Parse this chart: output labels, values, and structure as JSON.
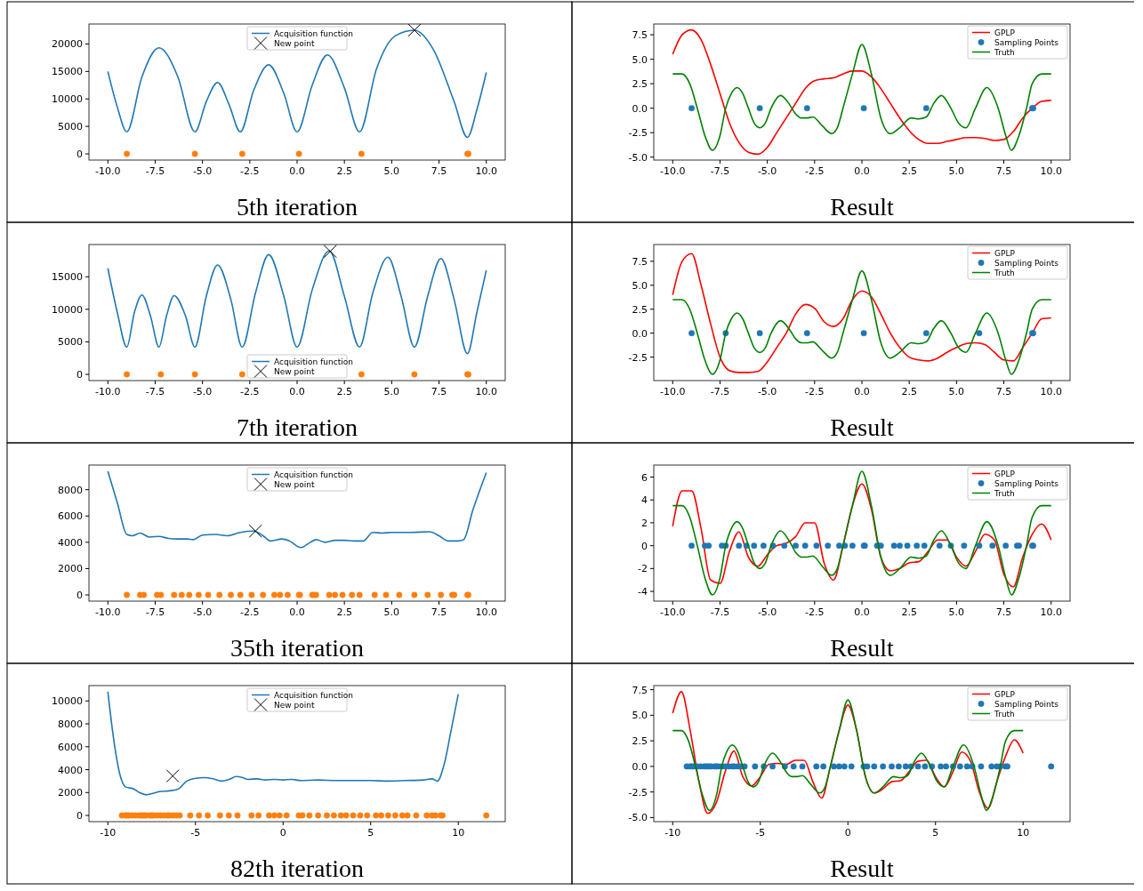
{
  "chart_data": [
    {
      "type": "line",
      "title": "5th iteration",
      "legend": "top",
      "xlim": [
        -11,
        11
      ],
      "ylim": [
        -1125,
        23625
      ],
      "xticks": [
        {
          "value": -10,
          "label": "-10.0"
        },
        {
          "value": -7.5,
          "label": "-7.5"
        },
        {
          "value": -5,
          "label": "-5.0"
        },
        {
          "value": -2.5,
          "label": "-2.5"
        },
        {
          "value": 0,
          "label": "0.0"
        },
        {
          "value": 2.5,
          "label": "2.5"
        },
        {
          "value": 5,
          "label": "5.0"
        },
        {
          "value": 7.5,
          "label": "7.5"
        },
        {
          "value": 10,
          "label": "10.0"
        }
      ],
      "yticks": [
        0,
        5000,
        10000,
        15000,
        20000
      ],
      "series": [
        {
          "name": "Acquisition function",
          "type": "line",
          "color": "#1f77b4",
          "x": [
            -10,
            -9.5,
            -9,
            -8.2,
            -7.3,
            -6.3,
            -5.4,
            -4.8,
            -4.2,
            -3.6,
            -3,
            -2.3,
            -1.5,
            -0.7,
            0,
            0.8,
            1.6,
            2.5,
            3.3,
            4.2,
            5.2,
            6.2,
            7.2,
            8.3,
            9,
            9.5,
            10
          ],
          "values": [
            15000,
            8500,
            4000,
            14000,
            19300,
            14000,
            4000,
            9500,
            13000,
            9000,
            4000,
            11500,
            16200,
            11000,
            4000,
            12500,
            18000,
            12000,
            4000,
            15500,
            21500,
            22500,
            19000,
            9500,
            3000,
            8000,
            14800
          ]
        },
        {
          "type": "scatter",
          "marker": "circle",
          "color": "#ff7f0e",
          "x": [
            -9,
            -5.4,
            -2.9,
            0.1,
            3.4,
            9,
            9.05
          ],
          "values": [
            0,
            0,
            0,
            0,
            0,
            0,
            0
          ]
        },
        {
          "name": "New point",
          "type": "scatter",
          "marker": "cross",
          "color": "#000000",
          "x": [
            6.2
          ],
          "values": [
            22500
          ]
        }
      ]
    },
    {
      "type": "line",
      "title": "Result",
      "legend": "top right",
      "x": [
        -10,
        -9.5,
        -9,
        -8.5,
        -8,
        -7.5,
        -7,
        -6.5,
        -6,
        -5.5,
        -5,
        -4.5,
        -4,
        -3.5,
        -3,
        -2.5,
        -2,
        -1.5,
        -1,
        -0.5,
        0,
        0.5,
        1,
        1.5,
        2,
        2.5,
        3,
        3.5,
        4,
        4.5,
        5,
        5.5,
        6,
        6.5,
        7,
        7.5,
        8,
        8.5,
        9,
        9.5,
        10
      ],
      "xlim": [
        -11,
        11
      ],
      "ylim": [
        -5.3,
        8.6
      ],
      "xticks": [
        {
          "value": -10,
          "label": "-10.0"
        },
        {
          "value": -7.5,
          "label": "-7.5"
        },
        {
          "value": -5,
          "label": "-5.0"
        },
        {
          "value": -2.5,
          "label": "-2.5"
        },
        {
          "value": 0,
          "label": "0.0"
        },
        {
          "value": 2.5,
          "label": "2.5"
        },
        {
          "value": 5,
          "label": "5.0"
        },
        {
          "value": 7.5,
          "label": "7.5"
        },
        {
          "value": 10,
          "label": "10.0"
        }
      ],
      "yticks": [
        {
          "value": -5,
          "label": "-5.0"
        },
        {
          "value": -2.5,
          "label": "-2.5"
        },
        {
          "value": 0,
          "label": "0.0"
        },
        {
          "value": 2.5,
          "label": "2.5"
        },
        {
          "value": 5,
          "label": "5.0"
        },
        {
          "value": 7.5,
          "label": "7.5"
        }
      ],
      "series": [
        {
          "name": "GPLP",
          "type": "line",
          "color": "#ff0000",
          "values": [
            5.5,
            7.5,
            8,
            7,
            4.5,
            1.5,
            -1.5,
            -3.5,
            -4.5,
            -4.7,
            -4,
            -2.5,
            -1,
            0.5,
            2,
            2.8,
            3,
            3.1,
            3.5,
            3.8,
            3.8,
            3.2,
            2,
            0.5,
            -1,
            -2.3,
            -3.2,
            -3.6,
            -3.6,
            -3.4,
            -3.2,
            -3,
            -3,
            -3.1,
            -3.3,
            -3.2,
            -2.4,
            -1,
            0,
            0.7,
            0.8
          ]
        },
        {
          "name": "Sampling Points",
          "type": "scatter",
          "marker": "circle",
          "color": "#1f77b4",
          "x": [
            -9,
            -5.4,
            -2.9,
            0.1,
            3.4,
            9,
            9.05
          ],
          "values": [
            0,
            0,
            0,
            0,
            0,
            0,
            0
          ]
        },
        {
          "name": "Truth",
          "type": "line",
          "color": "#008000",
          "x": [
            -10,
            -9.5,
            -9.1,
            -8.7,
            -8.3,
            -7.9,
            -7.5,
            -7.2,
            -6.9,
            -6.6,
            -6.3,
            -6,
            -5.7,
            -5.4,
            -5.1,
            -4.8,
            -4.3,
            -3.8,
            -3.5,
            -3.2,
            -2.9,
            -2.6,
            -2.1,
            -1.6,
            -1.3,
            -1,
            -0.5,
            0,
            0.5,
            1,
            1.5,
            2,
            2.6,
            3,
            3.4,
            3.8,
            4.2,
            4.7,
            5.1,
            5.5,
            6,
            6.6,
            7.2,
            7.6,
            7.9,
            8.3,
            8.7,
            9,
            9.5,
            10
          ],
          "values": [
            3.5,
            3.5,
            2.5,
            0,
            -2.8,
            -4.3,
            -2.8,
            0,
            1.5,
            2.1,
            1.5,
            0,
            -1.5,
            -2,
            -1.5,
            0,
            1.3,
            0.3,
            -0.6,
            -1,
            -1,
            -0.9,
            -1.8,
            -2.6,
            -2,
            0,
            3.5,
            6.5,
            3.5,
            -1,
            -2.6,
            -2,
            -1,
            -1.1,
            -0.9,
            0.5,
            1.3,
            0,
            -1.5,
            -2,
            0,
            2.1,
            0,
            -2.8,
            -4.3,
            -2.8,
            0,
            2.5,
            3.5,
            3.5
          ]
        }
      ]
    },
    {
      "type": "line",
      "title": "7th iteration",
      "legend": "bottom",
      "xlim": [
        -11,
        11
      ],
      "ylim": [
        -950,
        19950
      ],
      "xticks": [
        {
          "value": -10,
          "label": "-10.0"
        },
        {
          "value": -7.5,
          "label": "-7.5"
        },
        {
          "value": -5,
          "label": "-5.0"
        },
        {
          "value": -2.5,
          "label": "-2.5"
        },
        {
          "value": 0,
          "label": "0.0"
        },
        {
          "value": 2.5,
          "label": "2.5"
        },
        {
          "value": 5,
          "label": "5.0"
        },
        {
          "value": 7.5,
          "label": "7.5"
        },
        {
          "value": 10,
          "label": "10.0"
        }
      ],
      "yticks": [
        0,
        5000,
        10000,
        15000
      ],
      "series": [
        {
          "name": "Acquisition function",
          "type": "line",
          "color": "#1f77b4",
          "x": [
            -10,
            -9.5,
            -9,
            -8.6,
            -8.2,
            -7.75,
            -7.3,
            -6.9,
            -6.5,
            -5.9,
            -5.4,
            -4.8,
            -4.2,
            -3.5,
            -2.9,
            -2.2,
            -1.5,
            -0.7,
            0,
            0.8,
            1.7,
            2.5,
            3.3,
            4,
            4.8,
            5.5,
            6.2,
            6.9,
            7.6,
            8.3,
            9,
            9.5,
            10
          ],
          "values": [
            16300,
            9500,
            4200,
            9500,
            12200,
            9000,
            4200,
            9000,
            12100,
            9000,
            4200,
            12000,
            16800,
            11500,
            4200,
            12500,
            18400,
            12000,
            4200,
            13000,
            19000,
            12000,
            4200,
            12500,
            18000,
            12000,
            4200,
            12000,
            17800,
            11500,
            3200,
            9500,
            16000
          ]
        },
        {
          "type": "scatter",
          "marker": "circle",
          "color": "#ff7f0e",
          "x": [
            -9,
            -7.2,
            -5.4,
            -2.9,
            3.4,
            6.2,
            9,
            9.05
          ],
          "values": [
            0,
            0,
            0,
            0,
            0,
            0,
            0,
            0
          ]
        },
        {
          "name": "New point",
          "type": "scatter",
          "marker": "cross",
          "color": "#000000",
          "x": [
            1.75
          ],
          "values": [
            18900
          ]
        }
      ]
    },
    {
      "type": "line",
      "title": "Result",
      "legend": "top right",
      "x": [
        -10,
        -9.5,
        -9,
        -8.5,
        -8,
        -7.5,
        -7,
        -6.5,
        -6,
        -5.5,
        -5,
        -4.5,
        -4,
        -3.5,
        -3,
        -2.5,
        -2,
        -1.5,
        -1,
        -0.5,
        0,
        0.5,
        1,
        1.5,
        2,
        2.5,
        3,
        3.5,
        4,
        4.5,
        5,
        5.5,
        6,
        6.5,
        7,
        7.5,
        8,
        8.5,
        9,
        9.5,
        10
      ],
      "xlim": [
        -11,
        11
      ],
      "ylim": [
        -4.95,
        9.25
      ],
      "xticks": [
        {
          "value": -10,
          "label": "-10.0"
        },
        {
          "value": -7.5,
          "label": "-7.5"
        },
        {
          "value": -5,
          "label": "-5.0"
        },
        {
          "value": -2.5,
          "label": "-2.5"
        },
        {
          "value": 0,
          "label": "0.0"
        },
        {
          "value": 2.5,
          "label": "2.5"
        },
        {
          "value": 5,
          "label": "5.0"
        },
        {
          "value": 7.5,
          "label": "7.5"
        },
        {
          "value": 10,
          "label": "10.0"
        }
      ],
      "yticks": [
        {
          "value": -2.5,
          "label": "-2.5"
        },
        {
          "value": 0,
          "label": "0.0"
        },
        {
          "value": 2.5,
          "label": "2.5"
        },
        {
          "value": 5,
          "label": "5.0"
        },
        {
          "value": 7.5,
          "label": "7.5"
        }
      ],
      "series": [
        {
          "name": "GPLP",
          "type": "line",
          "color": "#ff0000",
          "values": [
            4,
            7.5,
            8.3,
            5,
            1,
            -2.5,
            -3.9,
            -4.1,
            -4.1,
            -4,
            -3,
            -1.5,
            0,
            2,
            3,
            2.6,
            1.2,
            0.7,
            1.5,
            3.5,
            4.4,
            3.8,
            2,
            0,
            -1.5,
            -2.5,
            -2.8,
            -2.9,
            -2.6,
            -2,
            -1.5,
            -1.1,
            -1,
            -1.2,
            -2,
            -2.8,
            -2.9,
            -1.5,
            0,
            1.5,
            1.6
          ]
        },
        {
          "name": "Sampling Points",
          "type": "scatter",
          "marker": "circle",
          "color": "#1f77b4",
          "x": [
            -9,
            -7.2,
            -5.4,
            -2.9,
            0.1,
            3.4,
            6.2,
            9,
            9.05
          ],
          "values": [
            0,
            0,
            0,
            0,
            0,
            0,
            0,
            0,
            0
          ]
        },
        {
          "name": "Truth",
          "type": "line",
          "color": "#008000",
          "x": [
            -10,
            -9.5,
            -9.1,
            -8.7,
            -8.3,
            -7.9,
            -7.5,
            -7.2,
            -6.9,
            -6.6,
            -6.3,
            -6,
            -5.7,
            -5.4,
            -5.1,
            -4.8,
            -4.3,
            -3.8,
            -3.5,
            -3.2,
            -2.9,
            -2.6,
            -2.1,
            -1.6,
            -1.3,
            -1,
            -0.5,
            0,
            0.5,
            1,
            1.5,
            2,
            2.6,
            3,
            3.4,
            3.8,
            4.2,
            4.7,
            5.1,
            5.5,
            6,
            6.6,
            7.2,
            7.6,
            7.9,
            8.3,
            8.7,
            9,
            9.5,
            10
          ],
          "values": [
            3.5,
            3.5,
            2.5,
            0,
            -2.8,
            -4.3,
            -2.8,
            0,
            1.5,
            2.1,
            1.5,
            0,
            -1.5,
            -2,
            -1.5,
            0,
            1.3,
            0.3,
            -0.6,
            -1,
            -1,
            -0.9,
            -1.8,
            -2.6,
            -2,
            0,
            3.5,
            6.5,
            3.5,
            -1,
            -2.6,
            -2,
            -1,
            -1.1,
            -0.9,
            0.5,
            1.3,
            0,
            -1.5,
            -2,
            0,
            2.1,
            0,
            -2.8,
            -4.3,
            -2.8,
            0,
            2.5,
            3.5,
            3.5
          ]
        }
      ]
    },
    {
      "type": "line",
      "title": "35th iteration",
      "legend": "top",
      "xlim": [
        -11,
        11
      ],
      "ylim": [
        -470,
        9870
      ],
      "xticks": [
        {
          "value": -10,
          "label": "-10.0"
        },
        {
          "value": -7.5,
          "label": "-7.5"
        },
        {
          "value": -5,
          "label": "-5.0"
        },
        {
          "value": -2.5,
          "label": "-2.5"
        },
        {
          "value": 0,
          "label": "0.0"
        },
        {
          "value": 2.5,
          "label": "2.5"
        },
        {
          "value": 5,
          "label": "5.0"
        },
        {
          "value": 7.5,
          "label": "7.5"
        },
        {
          "value": 10,
          "label": "10.0"
        }
      ],
      "yticks": [
        0,
        2000,
        4000,
        6000,
        8000
      ],
      "series": [
        {
          "name": "Acquisition function",
          "type": "line",
          "color": "#1f77b4",
          "x": [
            -10,
            -9.5,
            -9,
            -8.7,
            -8.3,
            -7.8,
            -7.3,
            -6.8,
            -6.3,
            -5.8,
            -5.5,
            -5,
            -4.3,
            -3.7,
            -3,
            -2.3,
            -1.8,
            -1.4,
            -0.8,
            -0.4,
            0.2,
            0.7,
            1,
            1.5,
            2,
            2.5,
            3,
            3.5,
            4,
            4.5,
            5,
            6,
            7,
            7.5,
            8,
            8.5,
            8.8,
            9.3,
            10
          ],
          "values": [
            9400,
            7000,
            4600,
            4500,
            4700,
            4400,
            4450,
            4300,
            4250,
            4250,
            4200,
            4550,
            4600,
            4500,
            4750,
            4850,
            4500,
            4100,
            4250,
            4100,
            3600,
            4000,
            4200,
            4000,
            4150,
            4150,
            4100,
            4100,
            4750,
            4700,
            4750,
            4750,
            4800,
            4500,
            4100,
            4100,
            4200,
            6500,
            9300
          ]
        },
        {
          "type": "scatter",
          "marker": "circle",
          "color": "#ff7f0e",
          "x": [
            -9,
            -8.3,
            -8.1,
            -7.4,
            -7.2,
            -6.5,
            -6.1,
            -5.7,
            -5.2,
            -4.7,
            -4.1,
            -3.5,
            -3,
            -2.4,
            -1.8,
            -1.2,
            -0.9,
            -0.5,
            0.1,
            0.15,
            0.8,
            0.9,
            1,
            1.7,
            2,
            2.4,
            2.9,
            3.3,
            4.1,
            4.7,
            5.4,
            6.2,
            6.9,
            7.6,
            8.2,
            8.3,
            9,
            9.05
          ],
          "values": [
            0,
            0,
            0,
            0,
            0,
            0,
            0,
            0,
            0,
            0,
            0,
            0,
            0,
            0,
            0,
            0,
            0,
            0,
            0,
            0,
            0,
            0,
            0,
            0,
            0,
            0,
            0,
            0,
            0,
            0,
            0,
            0,
            0,
            0,
            0,
            0,
            0,
            0
          ]
        },
        {
          "name": "New point",
          "type": "scatter",
          "marker": "cross",
          "color": "#000000",
          "x": [
            -2.2
          ],
          "values": [
            4850
          ]
        }
      ]
    },
    {
      "type": "line",
      "title": "Result",
      "legend": "top right",
      "x": [
        -10,
        -9.5,
        -9,
        -8.5,
        -8,
        -7.5,
        -7,
        -6.5,
        -6,
        -5.5,
        -5,
        -4.5,
        -4,
        -3.5,
        -3,
        -2.5,
        -2,
        -1.5,
        -1,
        -0.5,
        0,
        0.5,
        1,
        1.5,
        2,
        2.5,
        3,
        3.5,
        4,
        4.5,
        5,
        5.5,
        6,
        6.5,
        7,
        7.5,
        8,
        8.5,
        9,
        9.5,
        10
      ],
      "xlim": [
        -11,
        11
      ],
      "ylim": [
        -4.85,
        7.05
      ],
      "xticks": [
        {
          "value": -10,
          "label": "-10.0"
        },
        {
          "value": -7.5,
          "label": "-7.5"
        },
        {
          "value": -5,
          "label": "-5.0"
        },
        {
          "value": -2.5,
          "label": "-2.5"
        },
        {
          "value": 0,
          "label": "0.0"
        },
        {
          "value": 2.5,
          "label": "2.5"
        },
        {
          "value": 5,
          "label": "5.0"
        },
        {
          "value": 7.5,
          "label": "7.5"
        },
        {
          "value": 10,
          "label": "10.0"
        }
      ],
      "yticks": [
        -4,
        -2,
        0,
        2,
        4,
        6
      ],
      "series": [
        {
          "name": "GPLP",
          "type": "line",
          "color": "#ff0000",
          "values": [
            1.7,
            4.8,
            4.8,
            1.5,
            -3,
            -3.3,
            -0.5,
            1.2,
            -1,
            -1.8,
            -0.8,
            0,
            0.2,
            0.8,
            2,
            2,
            -1.5,
            -3,
            0,
            3.5,
            5.4,
            3.2,
            -1,
            -2.2,
            -2,
            -1.5,
            -1.4,
            -0.5,
            0.5,
            0.5,
            -1,
            -1.8,
            -0.5,
            1,
            0.5,
            -2.5,
            -3.6,
            -1,
            1,
            1.9,
            0.5
          ]
        },
        {
          "name": "Sampling Points",
          "type": "scatter",
          "marker": "circle",
          "color": "#1f77b4",
          "x": [
            -9,
            -8.3,
            -8.1,
            -7.4,
            -7.2,
            -6.5,
            -6.1,
            -5.7,
            -5.2,
            -4.7,
            -4.1,
            -3.5,
            -3,
            -2.4,
            -1.8,
            -1.2,
            -0.9,
            -0.5,
            0.1,
            0.15,
            0.8,
            0.9,
            1,
            1.7,
            2,
            2.4,
            2.9,
            3.3,
            4.1,
            4.7,
            5.4,
            6.2,
            6.9,
            7.6,
            8.2,
            8.3,
            9,
            9.05
          ],
          "values": [
            0,
            0,
            0,
            0,
            0,
            0,
            0,
            0,
            0,
            0,
            0,
            0,
            0,
            0,
            0,
            0,
            0,
            0,
            0,
            0,
            0,
            0,
            0,
            0,
            0,
            0,
            0,
            0,
            0,
            0,
            0,
            0,
            0,
            0,
            0,
            0,
            0,
            0
          ]
        },
        {
          "name": "Truth",
          "type": "line",
          "color": "#008000",
          "x": [
            -10,
            -9.5,
            -9.1,
            -8.7,
            -8.3,
            -7.9,
            -7.5,
            -7.2,
            -6.9,
            -6.6,
            -6.3,
            -6,
            -5.7,
            -5.4,
            -5.1,
            -4.8,
            -4.3,
            -3.8,
            -3.5,
            -3.2,
            -2.9,
            -2.6,
            -2.1,
            -1.6,
            -1.3,
            -1,
            -0.5,
            0,
            0.5,
            1,
            1.5,
            2,
            2.6,
            3,
            3.4,
            3.8,
            4.2,
            4.7,
            5.1,
            5.5,
            6,
            6.6,
            7.2,
            7.6,
            7.9,
            8.3,
            8.7,
            9,
            9.5,
            10
          ],
          "values": [
            3.5,
            3.5,
            2.5,
            0,
            -2.8,
            -4.3,
            -2.8,
            0,
            1.5,
            2.1,
            1.5,
            0,
            -1.5,
            -2,
            -1.5,
            0,
            1.3,
            0.3,
            -0.6,
            -1,
            -1,
            -0.9,
            -1.8,
            -2.6,
            -2,
            0,
            3.5,
            6.5,
            3.5,
            -1,
            -2.6,
            -2,
            -1,
            -1.1,
            -0.9,
            0.5,
            1.3,
            0,
            -1.5,
            -2,
            0,
            2.1,
            0,
            -2.8,
            -4.3,
            -2.8,
            0,
            2.5,
            3.5,
            3.5
          ]
        }
      ]
    },
    {
      "type": "line",
      "title": "82th iteration",
      "legend": "top",
      "xlim": [
        -11.08,
        12.68
      ],
      "ylim": [
        -540,
        11340
      ],
      "xticks": [
        -10,
        -5,
        0,
        5,
        10
      ],
      "yticks": [
        0,
        2000,
        4000,
        6000,
        8000,
        10000
      ],
      "series": [
        {
          "name": "Acquisition function",
          "type": "line",
          "color": "#1f77b4",
          "x": [
            -10,
            -9.7,
            -9.3,
            -9,
            -8.5,
            -8.2,
            -7.8,
            -7.5,
            -7,
            -6.5,
            -6,
            -5.5,
            -5,
            -4.5,
            -4,
            -3.5,
            -3,
            -2.7,
            -2.3,
            -2,
            -1.5,
            -1,
            -0.5,
            0,
            0.5,
            1,
            2,
            3,
            4,
            5,
            6,
            7,
            8,
            8.5,
            8.8,
            9.2,
            9.6,
            10
          ],
          "values": [
            10800,
            7000,
            3500,
            2500,
            2300,
            2000,
            1800,
            1900,
            2100,
            2150,
            2300,
            3000,
            3250,
            3300,
            3200,
            3000,
            3200,
            3400,
            3300,
            3150,
            3200,
            3100,
            3150,
            3100,
            3150,
            3050,
            3100,
            3050,
            3050,
            3050,
            3000,
            3050,
            3100,
            3200,
            3000,
            4500,
            7500,
            10600
          ]
        },
        {
          "type": "scatter",
          "marker": "circle",
          "color": "#ff7f0e",
          "x": [
            -9.2,
            -9,
            -8.9,
            -8.8,
            -8.6,
            -8.4,
            -8.2,
            -8.1,
            -8,
            -7.9,
            -7.8,
            -7.6,
            -7.5,
            -7.4,
            -7.2,
            -7,
            -6.8,
            -6.6,
            -6.5,
            -6.3,
            -6.1,
            -5.9,
            -5.3,
            -4.8,
            -4.3,
            -3.6,
            -3.1,
            -2.6,
            -1.8,
            -1.4,
            -0.8,
            -0.5,
            -0.2,
            0.2,
            0.9,
            1.1,
            1.5,
            2,
            2.5,
            2.9,
            3.3,
            3.6,
            4,
            4.4,
            4.8,
            5.3,
            5.6,
            6,
            6.4,
            6.8,
            7.1,
            7.6,
            8.2,
            8.5,
            8.7,
            9,
            9.1,
            11.6
          ],
          "values": [
            0,
            0,
            0,
            0,
            0,
            0,
            0,
            0,
            0,
            0,
            0,
            0,
            0,
            0,
            0,
            0,
            0,
            0,
            0,
            0,
            0,
            0,
            0,
            0,
            0,
            0,
            0,
            0,
            0,
            0,
            0,
            0,
            0,
            0,
            0,
            0,
            0,
            0,
            0,
            0,
            0,
            0,
            0,
            0,
            0,
            0,
            0,
            0,
            0,
            0,
            0,
            0,
            0,
            0,
            0,
            0,
            0,
            0
          ]
        },
        {
          "name": "New point",
          "type": "scatter",
          "marker": "cross",
          "color": "#000000",
          "x": [
            -6.3
          ],
          "values": [
            3450
          ]
        }
      ]
    },
    {
      "type": "line",
      "title": "Result",
      "legend": "top right",
      "x": [
        -10,
        -9.5,
        -9,
        -8.5,
        -8,
        -7.5,
        -7,
        -6.5,
        -6,
        -5.5,
        -5,
        -4.5,
        -4,
        -3.5,
        -3,
        -2.5,
        -2,
        -1.5,
        -1,
        -0.5,
        0,
        0.5,
        1,
        1.5,
        2,
        2.5,
        3,
        3.5,
        4,
        4.5,
        5,
        5.5,
        6,
        6.5,
        7,
        7.5,
        8,
        8.5,
        9,
        9.5,
        10
      ],
      "xlim": [
        -11.08,
        12.68
      ],
      "ylim": [
        -5.4,
        7.9
      ],
      "xticks": [
        -10,
        -5,
        0,
        5,
        10
      ],
      "yticks": [
        {
          "value": -5,
          "label": "-5.0"
        },
        {
          "value": -2.5,
          "label": "-2.5"
        },
        {
          "value": 0,
          "label": "0.0"
        },
        {
          "value": 2.5,
          "label": "2.5"
        },
        {
          "value": 5,
          "label": "5.0"
        },
        {
          "value": 7.5,
          "label": "7.5"
        }
      ],
      "series": [
        {
          "name": "GPLP",
          "type": "line",
          "color": "#ff0000",
          "values": [
            5.2,
            7.3,
            3.5,
            -1.5,
            -4.6,
            -3.5,
            -0.5,
            1.5,
            -1,
            -1.9,
            -1,
            0.2,
            0.3,
            0.2,
            0.6,
            0.6,
            -1.5,
            -3.1,
            0,
            3.5,
            6,
            3.5,
            -1,
            -2.6,
            -2.2,
            -1.5,
            -1.4,
            -0.5,
            0.5,
            0.6,
            -1,
            -2,
            -0.5,
            1.4,
            0.5,
            -2.5,
            -4.1,
            -1.5,
            1,
            2.6,
            1.3
          ]
        },
        {
          "name": "Sampling Points",
          "type": "scatter",
          "marker": "circle",
          "color": "#1f77b4",
          "x": [
            -9.2,
            -9,
            -8.9,
            -8.8,
            -8.6,
            -8.4,
            -8.2,
            -8.1,
            -8,
            -7.9,
            -7.8,
            -7.6,
            -7.5,
            -7.4,
            -7.2,
            -7,
            -6.8,
            -6.6,
            -6.5,
            -6.3,
            -6.1,
            -5.9,
            -5.3,
            -4.8,
            -4.3,
            -3.6,
            -3.1,
            -2.6,
            -1.8,
            -1.4,
            -0.8,
            -0.5,
            -0.2,
            0.2,
            0.9,
            1.1,
            1.5,
            2,
            2.5,
            2.9,
            3.3,
            3.6,
            4,
            4.4,
            4.8,
            5.3,
            5.6,
            6,
            6.4,
            6.8,
            7.1,
            7.6,
            8.2,
            8.5,
            8.7,
            9,
            9.1,
            11.6
          ],
          "values": [
            0,
            0,
            0,
            0,
            0,
            0,
            0,
            0,
            0,
            0,
            0,
            0,
            0,
            0,
            0,
            0,
            0,
            0,
            0,
            0,
            0,
            0,
            0,
            0,
            0,
            0,
            0,
            0,
            0,
            0,
            0,
            0,
            0,
            0,
            0,
            0,
            0,
            0,
            0,
            0,
            0,
            0,
            0,
            0,
            0,
            0,
            0,
            0,
            0,
            0,
            0,
            0,
            0,
            0,
            0,
            0,
            0,
            0
          ]
        },
        {
          "name": "Truth",
          "type": "line",
          "color": "#008000",
          "x": [
            -10,
            -9.5,
            -9.1,
            -8.7,
            -8.3,
            -7.9,
            -7.5,
            -7.2,
            -6.9,
            -6.6,
            -6.3,
            -6,
            -5.7,
            -5.4,
            -5.1,
            -4.8,
            -4.3,
            -3.8,
            -3.5,
            -3.2,
            -2.9,
            -2.6,
            -2.1,
            -1.6,
            -1.3,
            -1,
            -0.5,
            0,
            0.5,
            1,
            1.5,
            2,
            2.6,
            3,
            3.4,
            3.8,
            4.2,
            4.7,
            5.1,
            5.5,
            6,
            6.6,
            7.2,
            7.6,
            7.9,
            8.3,
            8.7,
            9,
            9.5,
            10
          ],
          "values": [
            3.5,
            3.5,
            2.5,
            0,
            -2.8,
            -4.3,
            -2.8,
            0,
            1.5,
            2.1,
            1.5,
            0,
            -1.5,
            -2,
            -1.5,
            0,
            1.3,
            0.3,
            -0.6,
            -1,
            -1,
            -0.9,
            -1.8,
            -2.6,
            -2,
            0,
            3.5,
            6.5,
            3.5,
            -1,
            -2.6,
            -2,
            -1,
            -1.1,
            -0.9,
            0.5,
            1.3,
            0,
            -1.5,
            -2,
            0,
            2.1,
            0,
            -2.8,
            -4.3,
            -2.8,
            0,
            2.5,
            3.5,
            3.5
          ]
        }
      ]
    }
  ]
}
